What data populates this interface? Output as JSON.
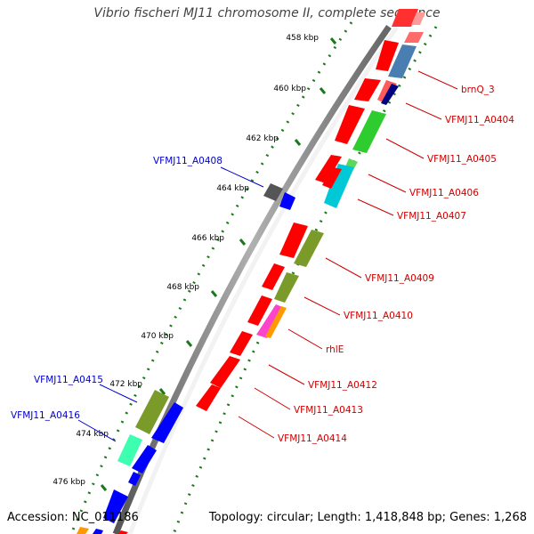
{
  "title": "Vibrio fischeri MJ11 chromosome II, complete sequence",
  "accession": "Accession: NC_011186",
  "summary": "Topology: circular; Length: 1,418,848 bp; Genes: 1,268",
  "colors": {
    "backbone": "#7f7f7f",
    "tick": "#1a7a1a",
    "label_fwd": "#cc0000",
    "label_rev": "#0000cc"
  },
  "ticks": [
    {
      "label": "458 kbp"
    },
    {
      "label": "460 kbp"
    },
    {
      "label": "462 kbp"
    },
    {
      "label": "464 kbp"
    },
    {
      "label": "466 kbp"
    },
    {
      "label": "468 kbp"
    },
    {
      "label": "470 kbp"
    },
    {
      "label": "472 kbp"
    },
    {
      "label": "474 kbp"
    },
    {
      "label": "476 kbp"
    }
  ],
  "gene_labels": [
    {
      "text": "brnQ_3"
    },
    {
      "text": "VFMJ11_A0404"
    },
    {
      "text": "VFMJ11_A0405"
    },
    {
      "text": "VFMJ11_A0406"
    },
    {
      "text": "VFMJ11_A0407"
    },
    {
      "text": "VFMJ11_A0408"
    },
    {
      "text": "VFMJ11_A0409"
    },
    {
      "text": "VFMJ11_A0410"
    },
    {
      "text": "rhlE"
    },
    {
      "text": "VFMJ11_A0412"
    },
    {
      "text": "VFMJ11_A0413"
    },
    {
      "text": "VFMJ11_A0414"
    },
    {
      "text": "VFMJ11_A0415"
    },
    {
      "text": "VFMJ11_A0416"
    }
  ]
}
